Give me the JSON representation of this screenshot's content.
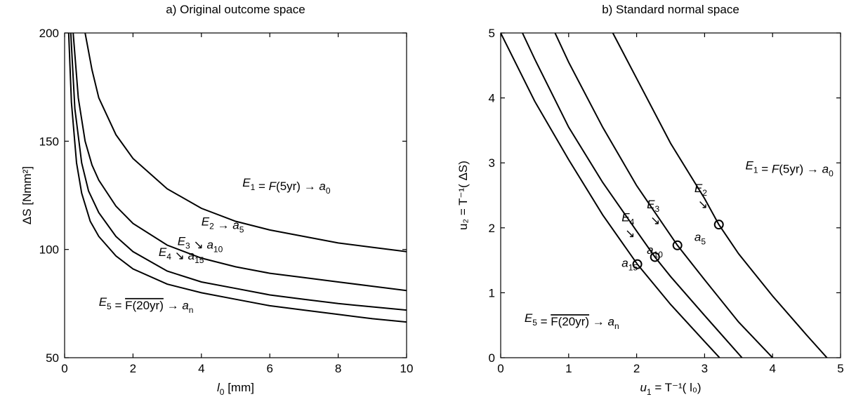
{
  "chart_data": [
    {
      "type": "line",
      "title": "a) Original outcome space",
      "xlabel": {
        "main": "l",
        "sub": "0",
        "unit": " [mm]"
      },
      "ylabel": "ΔS [Nmm²]",
      "xlim": [
        0,
        10
      ],
      "ylim": [
        50,
        200
      ],
      "xticks": [
        0,
        2,
        4,
        6,
        8,
        10
      ],
      "yticks": [
        50,
        100,
        150,
        200
      ],
      "grid": false,
      "series": [
        {
          "label": "E1",
          "x": [
            0.6,
            0.8,
            1,
            1.5,
            2,
            3,
            4,
            5,
            6,
            7,
            8,
            9,
            10
          ],
          "y": [
            200,
            183,
            170,
            153,
            142,
            128,
            119,
            113,
            109,
            106,
            103,
            101,
            99
          ]
        },
        {
          "label": "E2",
          "x": [
            0.25,
            0.4,
            0.6,
            0.8,
            1,
            1.5,
            2,
            3,
            4,
            5,
            6,
            7,
            8,
            9,
            10
          ],
          "y": [
            200,
            170,
            150,
            139,
            132,
            120,
            112,
            102,
            96,
            92,
            89,
            87,
            85,
            83,
            81
          ]
        },
        {
          "label": "E3",
          "x": [
            0.18,
            0.3,
            0.5,
            0.7,
            1,
            1.5,
            2,
            3,
            4,
            5,
            6,
            7,
            8,
            9,
            10
          ],
          "y": [
            200,
            165,
            140,
            127,
            117,
            106,
            99,
            90,
            85,
            82,
            79,
            77,
            75,
            73.5,
            72
          ]
        },
        {
          "label": "E4",
          "x": [
            0.12,
            0.2,
            0.35,
            0.5,
            0.75,
            1,
            1.5,
            2,
            3,
            4,
            5,
            6,
            7,
            8,
            9,
            10
          ],
          "y": [
            200,
            168,
            140,
            126,
            113,
            106,
            97,
            91,
            84,
            80,
            77,
            74,
            72,
            70,
            68,
            66.5
          ]
        }
      ],
      "annotations": [
        {
          "parts": [
            [
              "E",
              "1"
            ],
            [
              " = "
            ],
            [
              "F",
              "",
              "italic"
            ],
            [
              "(5yr) → "
            ],
            [
              "a",
              "0"
            ]
          ],
          "x": 5.2,
          "y": 129
        },
        {
          "parts": [
            [
              "E",
              "2"
            ],
            [
              " → "
            ],
            [
              "a",
              "5"
            ]
          ],
          "x": 4.0,
          "y": 111
        },
        {
          "parts": [
            [
              "E",
              "3"
            ],
            [
              " ↘ "
            ],
            [
              "a",
              "10"
            ]
          ],
          "x": 3.3,
          "y": 102
        },
        {
          "parts": [
            [
              "E",
              "4"
            ],
            [
              " ↘ "
            ],
            [
              "a",
              "15"
            ]
          ],
          "x": 2.75,
          "y": 97
        },
        {
          "parts": [
            [
              "E",
              "5"
            ],
            [
              " = "
            ],
            [
              "F(20yr)",
              "",
              "overline"
            ],
            [
              " → "
            ],
            [
              "a",
              "n"
            ]
          ],
          "x": 1.0,
          "y": 74
        }
      ]
    },
    {
      "type": "line",
      "title": "b) Standard normal space",
      "xlabel": {
        "main": "u",
        "sub": "1",
        "unit": " = T⁻¹( l₀)"
      },
      "ylabel": "u₂ = T⁻¹( ΔS)",
      "xlim": [
        0,
        5
      ],
      "ylim": [
        0,
        5
      ],
      "xticks": [
        0,
        1,
        2,
        3,
        4,
        5
      ],
      "yticks": [
        0,
        1,
        2,
        3,
        4,
        5
      ],
      "grid": false,
      "series": [
        {
          "label": "E1",
          "x": [
            1.65,
            2.0,
            2.5,
            3.0,
            3.21,
            3.5,
            4.0,
            4.5,
            4.8
          ],
          "y": [
            5.0,
            4.3,
            3.3,
            2.45,
            2.05,
            1.6,
            0.95,
            0.35,
            0.0
          ]
        },
        {
          "label": "E2",
          "x": [
            0.8,
            1.0,
            1.5,
            2.0,
            2.6,
            3.0,
            3.5,
            4.0
          ],
          "y": [
            5.0,
            4.55,
            3.55,
            2.65,
            1.73,
            1.2,
            0.55,
            0.0
          ]
        },
        {
          "label": "E3",
          "x": [
            0.32,
            0.5,
            1.0,
            1.5,
            2.0,
            2.27,
            2.5,
            3.0,
            3.55
          ],
          "y": [
            5.0,
            4.6,
            3.55,
            2.7,
            1.95,
            1.55,
            1.25,
            0.65,
            0.0
          ]
        },
        {
          "label": "E4",
          "x": [
            0.0,
            0.5,
            1.0,
            1.5,
            2.01,
            2.5,
            3.0,
            3.22
          ],
          "y": [
            5.0,
            3.95,
            3.05,
            2.2,
            1.44,
            0.82,
            0.25,
            0.0
          ]
        }
      ],
      "points": [
        {
          "x": 3.21,
          "y": 2.05
        },
        {
          "x": 2.6,
          "y": 1.73
        },
        {
          "x": 2.27,
          "y": 1.55
        },
        {
          "x": 2.01,
          "y": 1.44
        }
      ],
      "annotations": [
        {
          "parts": [
            [
              "E",
              "1"
            ],
            [
              " = "
            ],
            [
              "F",
              "",
              "italic"
            ],
            [
              "(5yr) → "
            ],
            [
              "a",
              "0"
            ]
          ],
          "x": 3.6,
          "y": 2.9
        },
        {
          "parts": [
            [
              "E",
              "2"
            ]
          ],
          "x": 2.85,
          "y": 2.55
        },
        {
          "parts": [
            [
              "↘"
            ]
          ],
          "x": 2.9,
          "y": 2.3
        },
        {
          "parts": [
            [
              "a",
              "5"
            ]
          ],
          "x": 2.85,
          "y": 1.8
        },
        {
          "parts": [
            [
              "E",
              "3"
            ]
          ],
          "x": 2.15,
          "y": 2.3
        },
        {
          "parts": [
            [
              "↘"
            ]
          ],
          "x": 2.2,
          "y": 2.05
        },
        {
          "parts": [
            [
              "a",
              "10"
            ]
          ],
          "x": 2.15,
          "y": 1.6
        },
        {
          "parts": [
            [
              "E",
              "4"
            ]
          ],
          "x": 1.78,
          "y": 2.1
        },
        {
          "parts": [
            [
              "↘"
            ]
          ],
          "x": 1.83,
          "y": 1.85
        },
        {
          "parts": [
            [
              "a",
              "15"
            ]
          ],
          "x": 1.78,
          "y": 1.4
        },
        {
          "parts": [
            [
              "E",
              "5"
            ],
            [
              " = "
            ],
            [
              "F(20yr)",
              "",
              "overline"
            ],
            [
              " → "
            ],
            [
              "a",
              "n"
            ]
          ],
          "x": 0.35,
          "y": 0.55
        }
      ]
    }
  ]
}
